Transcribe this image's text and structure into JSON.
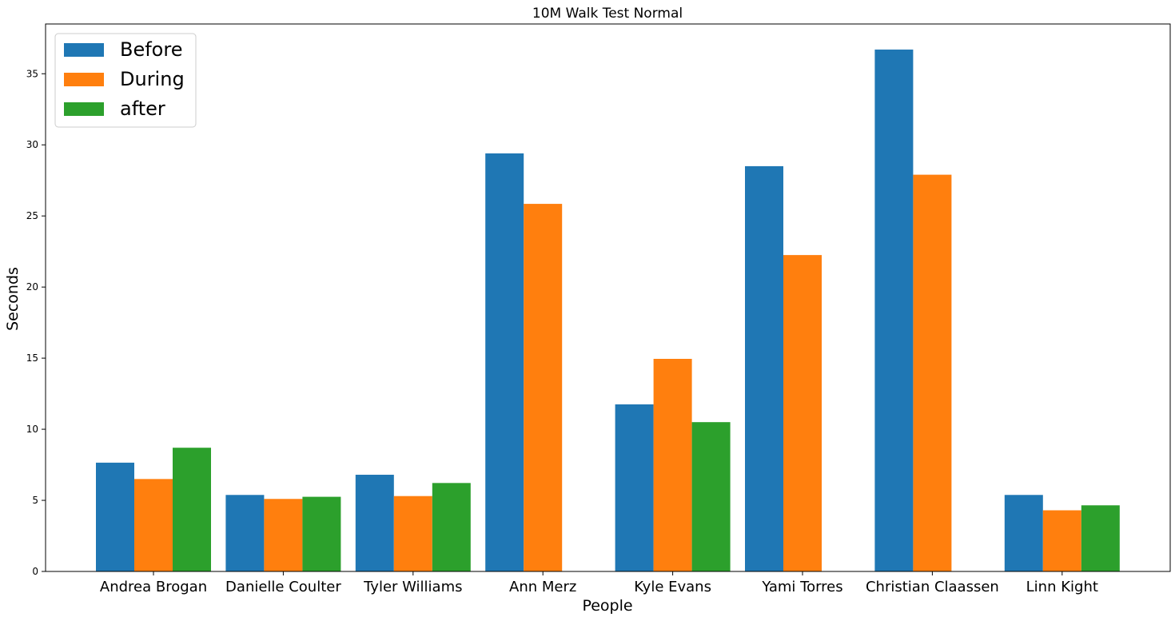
{
  "chart_data": {
    "type": "bar",
    "title": "10M Walk Test Normal",
    "xlabel": "People",
    "ylabel": "Seconds",
    "categories": [
      "Andrea Brogan",
      "Danielle Coulter",
      "Tyler Williams",
      "Ann Merz",
      "Kyle Evans",
      "Yami Torres",
      "Christian Claassen",
      "Linn Kight"
    ],
    "series": [
      {
        "name": "Before",
        "color": "#1f77b4",
        "values": [
          7.65,
          5.38,
          6.8,
          29.4,
          11.75,
          28.5,
          36.7,
          5.38
        ]
      },
      {
        "name": "During",
        "color": "#ff7f0e",
        "values": [
          6.5,
          5.1,
          5.3,
          25.85,
          14.95,
          22.25,
          27.9,
          4.3
        ]
      },
      {
        "name": "after",
        "color": "#2ca02c",
        "values": [
          8.7,
          5.25,
          6.22,
          null,
          10.5,
          null,
          null,
          4.65
        ]
      }
    ],
    "ylim": [
      0,
      38.5
    ],
    "yticks": [
      0,
      5,
      10,
      15,
      20,
      25,
      30,
      35
    ],
    "legend_position": "upper-left",
    "grid": false
  }
}
